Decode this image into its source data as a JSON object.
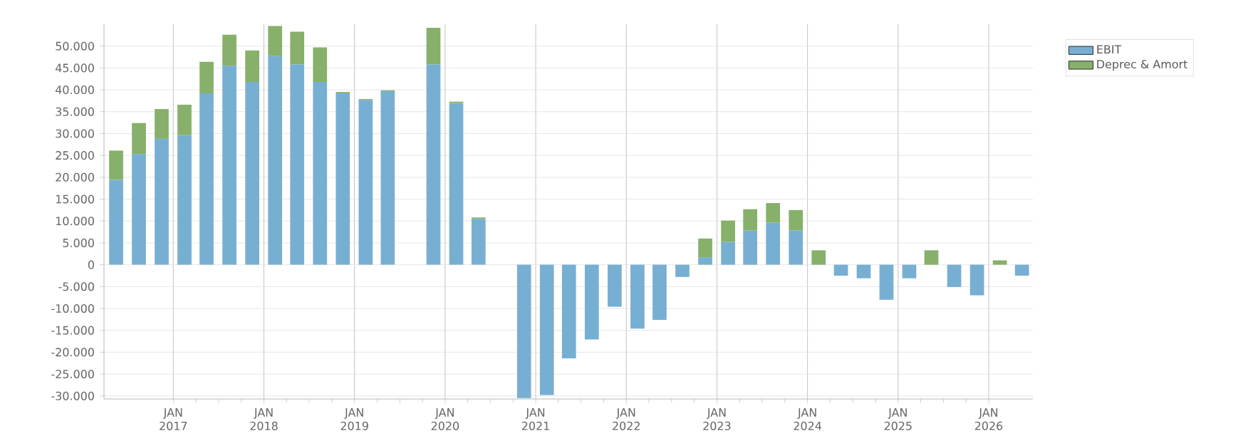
{
  "chart_data": {
    "type": "bar",
    "stacked": true,
    "x": [
      "2016-05-15",
      "2016-08-15",
      "2016-11-15",
      "2017-02-15",
      "2017-05-15",
      "2017-08-15",
      "2017-11-15",
      "2018-02-15",
      "2018-05-15",
      "2018-08-15",
      "2018-11-15",
      "2019-02-15",
      "2019-05-15",
      "2019-08-15",
      "2019-11-15",
      "2020-02-15",
      "2020-05-15",
      "2020-08-15",
      "2020-11-15",
      "2021-02-15",
      "2021-05-15",
      "2021-08-15",
      "2021-11-15",
      "2022-02-15",
      "2022-05-15",
      "2022-08-15",
      "2022-11-15",
      "2023-02-15",
      "2023-05-15",
      "2023-08-15",
      "2023-11-15",
      "2024-02-15",
      "2024-05-15",
      "2024-08-15",
      "2024-11-15",
      "2025-02-15",
      "2025-05-15",
      "2025-08-15",
      "2025-11-15",
      "2026-02-15",
      "2026-05-15"
    ],
    "series": [
      {
        "name": "EBIT",
        "color": "#77afd2",
        "values": [
          19400,
          25300,
          28800,
          29700,
          39200,
          45500,
          41800,
          47700,
          45800,
          41800,
          39200,
          37700,
          39700,
          null,
          45800,
          37000,
          10500,
          null,
          -30500,
          -29800,
          -21400,
          -17100,
          -9600,
          -14600,
          -12600,
          -2800,
          1700,
          5200,
          7800,
          9600,
          7800,
          0,
          -2500,
          -3100,
          -8000,
          -3100,
          0,
          -5100,
          -7000,
          0,
          -2500
        ]
      },
      {
        "name": "Deprec & Amort",
        "color": "#87b06a",
        "values": [
          6700,
          7100,
          6800,
          6900,
          7200,
          7100,
          7200,
          6900,
          7500,
          7900,
          300,
          200,
          200,
          null,
          8400,
          300,
          300,
          null,
          0,
          0,
          0,
          0,
          0,
          0,
          0,
          0,
          4300,
          4900,
          4900,
          4500,
          4700,
          3300,
          0,
          0,
          0,
          0,
          3300,
          0,
          0,
          1000,
          0
        ]
      }
    ],
    "xlim": [
      "2016-03-27",
      "2026-06-28"
    ],
    "xticks": [
      {
        "value": "2017-01-01",
        "label": "JAN 2017"
      },
      {
        "value": "2018-01-01",
        "label": "JAN 2018"
      },
      {
        "value": "2019-01-01",
        "label": "JAN 2019"
      },
      {
        "value": "2020-01-01",
        "label": "JAN 2020"
      },
      {
        "value": "2021-01-01",
        "label": "JAN 2021"
      },
      {
        "value": "2022-01-01",
        "label": "JAN 2022"
      },
      {
        "value": "2023-01-01",
        "label": "JAN 2023"
      },
      {
        "value": "2024-01-01",
        "label": "JAN 2024"
      },
      {
        "value": "2025-01-01",
        "label": "JAN 2025"
      },
      {
        "value": "2026-01-01",
        "label": "JAN 2026"
      }
    ],
    "ylim": [
      -30700,
      55000
    ],
    "yticks": [
      {
        "value": -30000,
        "label": "-30.000"
      },
      {
        "value": -25000,
        "label": "-25.000"
      },
      {
        "value": -20000,
        "label": "-20.000"
      },
      {
        "value": -15000,
        "label": "-15.000"
      },
      {
        "value": -10000,
        "label": "-10.000"
      },
      {
        "value": -5000,
        "label": "-5.000"
      },
      0,
      {
        "value": 5000,
        "label": "5.000"
      },
      {
        "value": 10000,
        "label": "10.000"
      },
      {
        "value": 15000,
        "label": "15.000"
      },
      {
        "value": 20000,
        "label": "20.000"
      },
      {
        "value": 25000,
        "label": "25.000"
      },
      {
        "value": 30000,
        "label": "30.000"
      },
      {
        "value": 35000,
        "label": "35.000"
      },
      {
        "value": 40000,
        "label": "40.000"
      },
      {
        "value": 45000,
        "label": "45.000"
      },
      {
        "value": 50000,
        "label": "50.000"
      }
    ],
    "grid": true,
    "legend": "top right"
  }
}
